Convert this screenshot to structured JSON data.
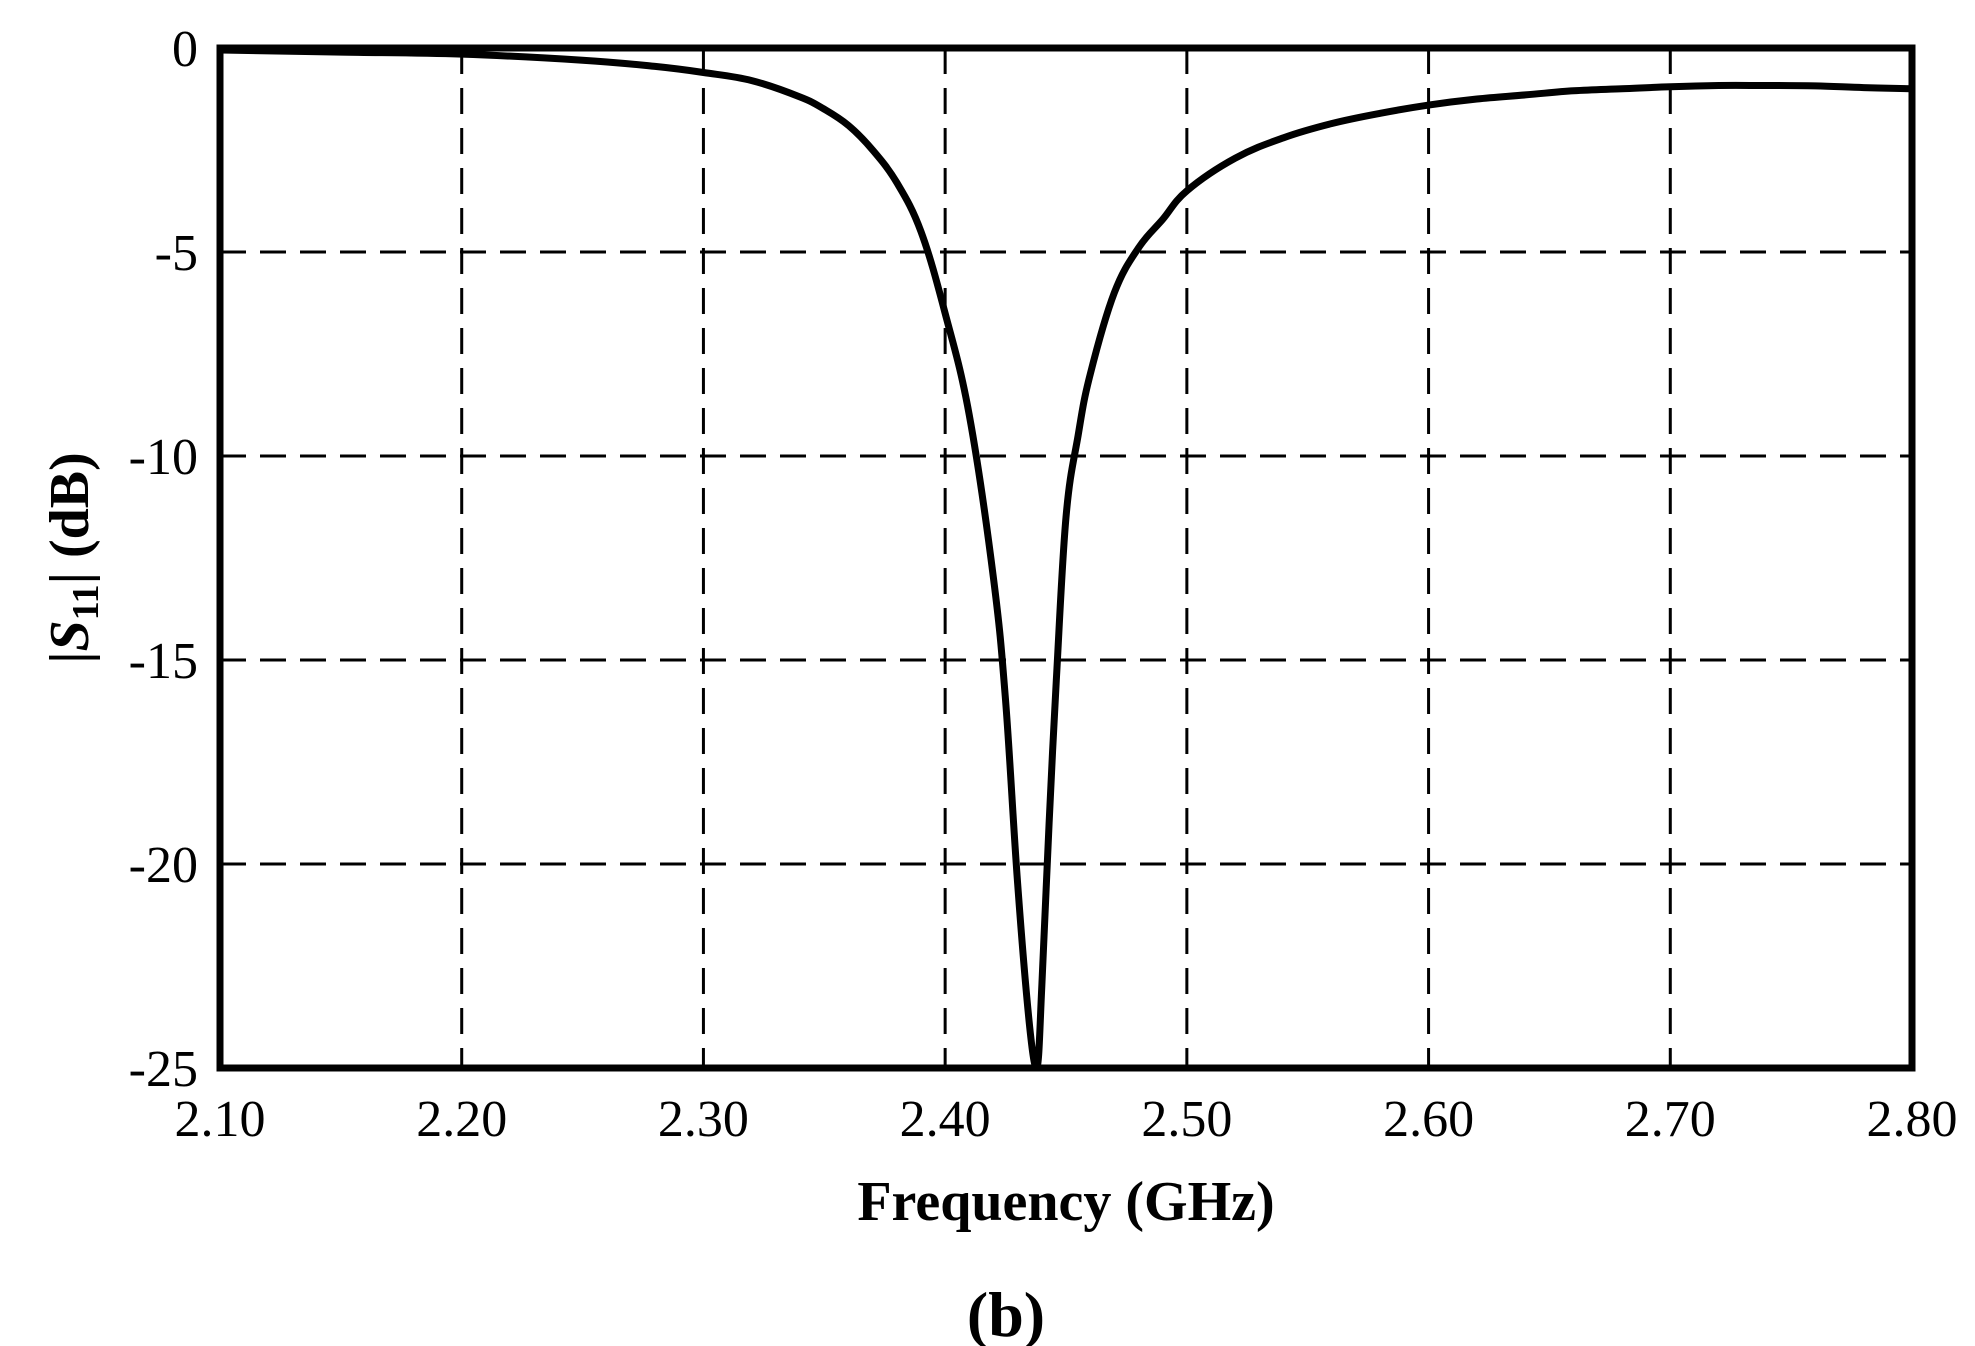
{
  "chart_data": {
    "type": "line",
    "title": "",
    "xlabel": "Frequency (GHz)",
    "ylabel": {
      "prefix": "|",
      "symbol": "S",
      "subscript": "11",
      "suffix": "|  (dB)"
    },
    "panel_label": "(b)",
    "xlim": [
      2.1,
      2.8
    ],
    "ylim": [
      -25,
      0
    ],
    "x_ticks": [
      2.1,
      2.2,
      2.3,
      2.4,
      2.5,
      2.6,
      2.7,
      2.8
    ],
    "x_tick_labels": [
      "2.10",
      "2.20",
      "2.30",
      "2.40",
      "2.50",
      "2.60",
      "2.70",
      "2.80"
    ],
    "y_ticks": [
      0,
      -5,
      -10,
      -15,
      -20,
      -25
    ],
    "y_tick_labels": [
      "0",
      "-5",
      "-10",
      "-15",
      "-20",
      "-25"
    ],
    "grid": true,
    "grid_style": "dashed",
    "line_color": "#000000",
    "series": [
      {
        "x": [
          2.1,
          2.15,
          2.2,
          2.25,
          2.28,
          2.3,
          2.32,
          2.34,
          2.35,
          2.36,
          2.37,
          2.38,
          2.39,
          2.4,
          2.41,
          2.42,
          2.425,
          2.43,
          2.435,
          2.438,
          2.44,
          2.443,
          2.446,
          2.45,
          2.455,
          2.46,
          2.47,
          2.48,
          2.49,
          2.5,
          2.52,
          2.54,
          2.56,
          2.58,
          2.6,
          2.62,
          2.64,
          2.66,
          2.68,
          2.7,
          2.72,
          2.74,
          2.76,
          2.78,
          2.8
        ],
        "y": [
          -0.05,
          -0.1,
          -0.15,
          -0.3,
          -0.45,
          -0.6,
          -0.8,
          -1.2,
          -1.5,
          -1.9,
          -2.5,
          -3.3,
          -4.5,
          -6.5,
          -9.0,
          -13.0,
          -16.0,
          -20.5,
          -24.0,
          -25.0,
          -23.0,
          -19.0,
          -15.5,
          -11.5,
          -9.5,
          -8.0,
          -6.0,
          -4.9,
          -4.2,
          -3.5,
          -2.7,
          -2.2,
          -1.85,
          -1.6,
          -1.4,
          -1.25,
          -1.15,
          -1.05,
          -1.0,
          -0.95,
          -0.92,
          -0.92,
          -0.93,
          -0.97,
          -1.0
        ]
      }
    ]
  }
}
